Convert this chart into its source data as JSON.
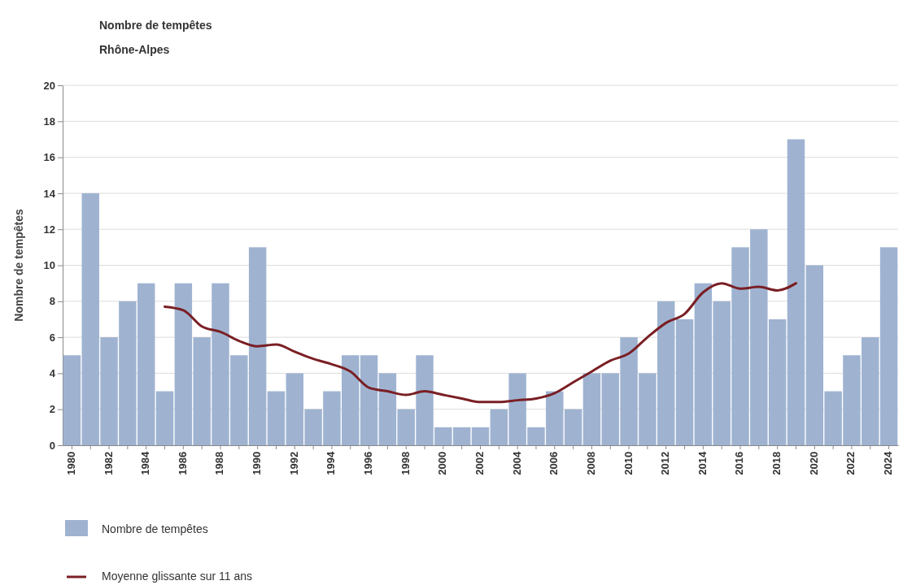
{
  "chart_data": {
    "type": "bar",
    "title": "Nombre de tempêtes",
    "subtitle": "Rhône-Alpes",
    "ylabel": "Nombre de tempêtes",
    "categories": [
      "1980",
      null,
      "1982",
      null,
      "1984",
      null,
      "1986",
      null,
      "1988",
      null,
      "1990",
      null,
      "1992",
      null,
      "1994",
      null,
      "1996",
      null,
      "1998",
      null,
      "2000",
      null,
      "2002",
      null,
      "2004",
      null,
      "2006",
      null,
      "2008",
      null,
      "2010",
      null,
      "2012",
      null,
      "2014",
      null,
      "2016",
      null,
      "2018",
      null,
      "2020",
      null,
      "2022",
      null,
      "2024"
    ],
    "series": [
      {
        "name": "Nombre de tempêtes",
        "color": "#9fb3d1",
        "values": [
          5,
          14,
          6,
          8,
          9,
          3,
          9,
          6,
          9,
          5,
          11,
          3,
          4,
          2,
          3,
          5,
          5,
          4,
          2,
          5,
          1,
          1,
          1,
          2,
          4,
          1,
          3,
          2,
          4,
          4,
          6,
          4,
          8,
          7,
          9,
          8,
          11,
          12,
          7,
          17,
          10,
          3,
          5,
          6,
          11
        ]
      },
      {
        "name": "Moyenne glissante sur 11 ans",
        "type": "line",
        "color": "#7a1f24",
        "values": [
          null,
          null,
          null,
          null,
          null,
          7.7,
          7.5,
          6.6,
          6.3,
          5.8,
          5.5,
          5.6,
          5.2,
          4.8,
          4.5,
          4.1,
          3.2,
          3.0,
          2.8,
          3.0,
          2.8,
          2.6,
          2.4,
          2.4,
          2.5,
          2.6,
          2.9,
          3.5,
          4.1,
          4.7,
          5.1,
          6.0,
          6.8,
          7.3,
          8.5,
          9.0,
          8.7,
          8.8,
          8.6,
          9.0,
          null,
          null,
          null,
          null,
          null
        ]
      }
    ],
    "ylim": [
      0,
      20
    ],
    "yticks": [
      0,
      2,
      4,
      6,
      8,
      10,
      12,
      14,
      16,
      18,
      20
    ],
    "grid": "y",
    "legend": "bottom",
    "marker": "none",
    "line_style": "solid"
  }
}
